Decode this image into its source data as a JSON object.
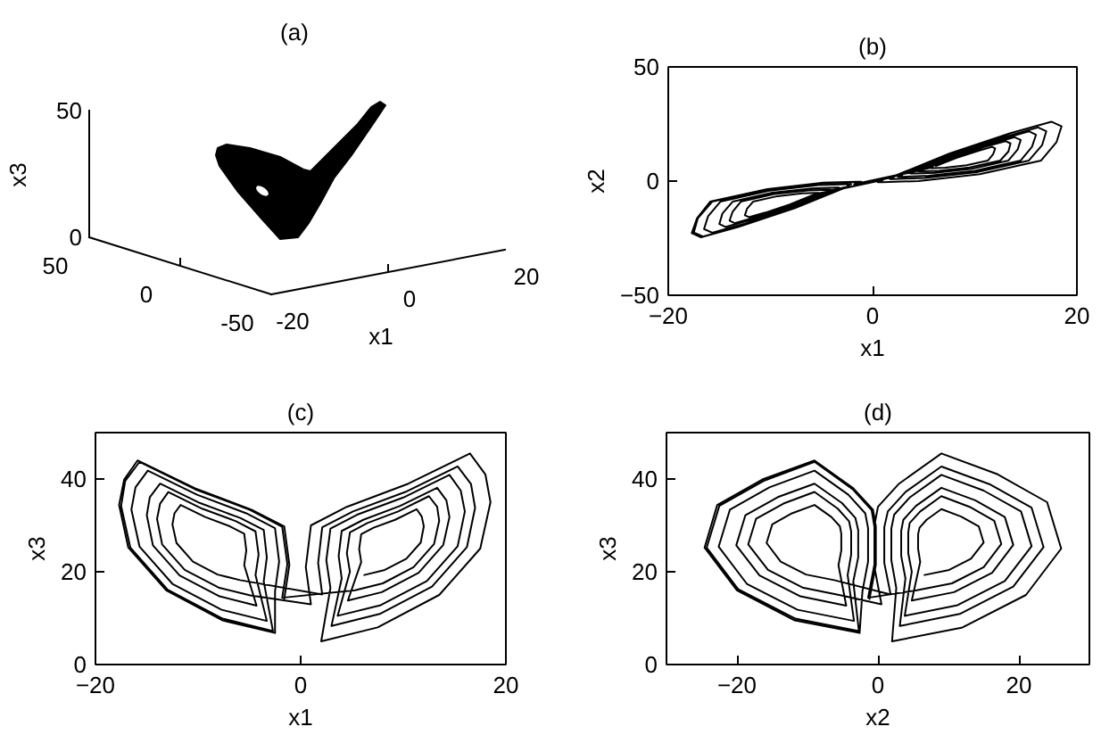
{
  "chart_data": [
    {
      "type": "other",
      "title": "(a)",
      "xlabel": "x1",
      "ylabel": "x3",
      "annotations": [
        "50",
        "0",
        "50",
        "0",
        "-50",
        "-20",
        "0",
        "20"
      ]
    },
    {
      "type": "line",
      "title": "(b)",
      "xlabel": "x1",
      "ylabel": "x2",
      "xlim": [
        -20,
        20
      ],
      "ylim": [
        -50,
        50
      ],
      "xticks": [
        -20,
        0,
        20
      ],
      "yticks": [
        -50,
        0,
        50
      ],
      "color": "#000000",
      "x": [
        6.2,
        8.2,
        10.3,
        11.7,
        12.0,
        11.8,
        11.3,
        9.2,
        7.1,
        5.9,
        5.7,
        5.9,
        4.6,
        7.9,
        11.5,
        13.9,
        14.5,
        14.2,
        13.3,
        9.7,
        6.1,
        4.0,
        3.7,
        4.0,
        3.0,
        7.7,
        12.8,
        16.2,
        17.0,
        16.6,
        15.3,
        10.2,
        5.1,
        2.1,
        1.7,
        2.1,
        -5.9,
        -8.1,
        -10.5,
        -12.1,
        -12.5,
        -12.3,
        -11.7,
        -9.3,
        -6.9,
        -5.5,
        -5.3,
        -5.5,
        -4.3,
        -7.9,
        -11.8,
        -14.4,
        -15.0,
        -14.7,
        -13.7,
        -9.8,
        -5.9,
        -3.6,
        -3.3,
        -3.6,
        -2.7,
        -7.6,
        -13.0,
        -16.6,
        -17.5,
        -17.1,
        -15.7,
        -10.3,
        -4.9,
        -1.8,
        -1.3,
        -1.8,
        5.3,
        8.0,
        11.0,
        13.0,
        13.5,
        13.3,
        12.5,
        9.5,
        6.5,
        4.8,
        4.5,
        4.8,
        3.6,
        7.8,
        12.3,
        15.3,
        16.0,
        15.6,
        14.5,
        10.0,
        5.5,
        2.9,
        2.5,
        2.9,
        2.0,
        7.5,
        13.5,
        17.5,
        18.5,
        18.0,
        16.5,
        10.5,
        4.5,
        1.0,
        0.5,
        1.0,
        -4.9,
        -8.0,
        -11.3,
        -13.5,
        -14.0,
        -13.7,
        -12.9,
        -9.6,
        -6.3,
        -4.4,
        -4.1,
        -4.4,
        -3.3,
        -7.7,
        -12.5,
        -15.7,
        -16.5,
        -16.1,
        -14.9,
        -10.1,
        -5.3,
        -2.5,
        -2.1,
        -2.5,
        -2.5,
        -7.6,
        -13.1,
        -16.8,
        -17.7,
        -17.2,
        -15.9,
        -10.3,
        -4.8,
        -1.6,
        -1.1,
        -1.6
      ],
      "values": [
        6.6,
        10.1,
        13.2,
        15.0,
        14.3,
        11.8,
        9.0,
        6.9,
        5.9,
        5.7,
        5.7,
        6.0,
        4.8,
        10.8,
        16.2,
        19.2,
        18.0,
        13.8,
        9.0,
        5.4,
        3.6,
        3.3,
        3.3,
        3.9,
        3.1,
        11.6,
        19.2,
        23.5,
        21.8,
        15.8,
        9.0,
        3.9,
        1.4,
        0.9,
        0.9,
        1.8,
        -6.2,
        -10.2,
        -13.8,
        -15.8,
        -15.0,
        -12.2,
        -9.0,
        -6.6,
        -5.4,
        -5.2,
        -5.2,
        -5.6,
        -4.5,
        -11.0,
        -16.8,
        -20.1,
        -18.8,
        -14.2,
        -9.0,
        -5.1,
        -3.2,
        -2.8,
        -2.8,
        -3.5,
        -2.7,
        -11.7,
        -19.8,
        -24.3,
        -22.5,
        -16.2,
        -9.0,
        -3.6,
        -0.9,
        -0.5,
        -0.5,
        -1.4,
        5.5,
        10.5,
        15.0,
        17.5,
        16.5,
        13.0,
        9.0,
        6.0,
        4.5,
        4.3,
        4.3,
        4.8,
        3.8,
        11.3,
        18.0,
        21.8,
        20.3,
        15.0,
        9.0,
        4.5,
        2.3,
        1.9,
        1.9,
        2.6,
        2.0,
        12.0,
        21.0,
        26.0,
        24.0,
        17.0,
        9.0,
        3.0,
        0.0,
        -0.5,
        -0.5,
        0.5,
        -5.2,
        -10.7,
        -15.6,
        -18.4,
        -17.3,
        -13.4,
        -9.0,
        -5.7,
        -4.1,
        -3.8,
        -3.8,
        -4.3,
        -3.4,
        -11.4,
        -18.6,
        -22.6,
        -21.0,
        -15.4,
        -9.0,
        -4.2,
        -1.8,
        -1.4,
        -1.4,
        -2.2,
        -2.6,
        -11.8,
        -20.0,
        -24.6,
        -22.8,
        -16.4,
        -9.0,
        -3.5,
        -0.7,
        -0.3,
        -0.3,
        -1.2
      ]
    },
    {
      "type": "line",
      "title": "(c)",
      "xlabel": "x1",
      "ylabel": "x3",
      "xlim": [
        -20,
        20
      ],
      "ylim": [
        0,
        50
      ],
      "xticks": [
        -20,
        0,
        20
      ],
      "yticks": [
        0,
        20,
        40
      ],
      "color": "#000000",
      "x": [
        6.2,
        8.2,
        10.3,
        11.7,
        12.0,
        11.8,
        11.3,
        9.2,
        7.1,
        5.9,
        5.7,
        5.9,
        4.6,
        7.9,
        11.5,
        13.9,
        14.5,
        14.2,
        13.3,
        9.7,
        6.1,
        4.0,
        3.7,
        4.0,
        3.0,
        7.7,
        12.8,
        16.2,
        17.0,
        16.6,
        15.3,
        10.2,
        5.1,
        2.1,
        1.7,
        2.1,
        -5.9,
        -8.1,
        -10.5,
        -12.1,
        -12.5,
        -12.3,
        -11.7,
        -9.3,
        -6.9,
        -5.5,
        -5.3,
        -5.5,
        -4.3,
        -7.9,
        -11.8,
        -14.4,
        -15.0,
        -14.7,
        -13.7,
        -9.8,
        -5.9,
        -3.6,
        -3.3,
        -3.6,
        -2.7,
        -7.6,
        -13.0,
        -16.6,
        -17.5,
        -17.1,
        -15.7,
        -10.3,
        -4.9,
        -1.8,
        -1.3,
        -1.8,
        5.3,
        8.0,
        11.0,
        13.0,
        13.5,
        13.3,
        12.5,
        9.5,
        6.5,
        4.8,
        4.5,
        4.8,
        3.6,
        7.8,
        12.3,
        15.3,
        16.0,
        15.6,
        14.5,
        10.0,
        5.5,
        2.9,
        2.5,
        2.9,
        2.0,
        7.5,
        13.5,
        17.5,
        18.5,
        18.0,
        16.5,
        10.5,
        4.5,
        1.0,
        0.5,
        1.0,
        -4.9,
        -8.0,
        -11.3,
        -13.5,
        -14.0,
        -13.7,
        -12.9,
        -9.6,
        -6.3,
        -4.4,
        -4.1,
        -4.4,
        -3.3,
        -7.7,
        -12.5,
        -15.7,
        -16.5,
        -16.1,
        -14.9,
        -10.1,
        -5.3,
        -2.5,
        -2.1,
        -2.5,
        -2.5,
        -7.6,
        -13.1,
        -16.8,
        -17.7,
        -17.2,
        -15.9,
        -10.3,
        -4.8,
        -1.6,
        -1.1,
        -1.6
      ],
      "values": [
        19.3,
        20.4,
        22.8,
        26.3,
        29.8,
        31.9,
        33.5,
        31.2,
        29.5,
        28.1,
        24.9,
        22.1,
        13.8,
        15.6,
        19.8,
        25.8,
        31.8,
        35.4,
        38.1,
        34.2,
        31.2,
        28.8,
        23.4,
        18.6,
        8.3,
        10.9,
        16.8,
        25.3,
        33.8,
        38.9,
        42.7,
        37.2,
        33.0,
        29.6,
        21.9,
        15.1,
        18.2,
        19.4,
        22.2,
        26.2,
        30.2,
        32.6,
        34.4,
        31.8,
        29.8,
        28.2,
        24.6,
        21.4,
        12.7,
        14.7,
        19.2,
        25.7,
        32.2,
        36.1,
        39.0,
        34.8,
        31.6,
        29.0,
        23.1,
        17.9,
        7.2,
        9.9,
        16.2,
        25.2,
        34.2,
        39.6,
        43.7,
        37.8,
        33.3,
        29.7,
        21.6,
        14.4,
        16.0,
        17.5,
        21.0,
        26.0,
        31.0,
        34.0,
        36.3,
        33.0,
        30.5,
        28.5,
        24.0,
        20.0,
        10.5,
        12.8,
        18.0,
        25.5,
        33.0,
        37.5,
        40.9,
        36.0,
        32.3,
        29.3,
        22.5,
        16.5,
        5.0,
        8.0,
        15.0,
        25.0,
        35.0,
        41.0,
        45.5,
        39.0,
        34.0,
        30.0,
        21.0,
        13.0,
        14.9,
        16.6,
        20.4,
        25.9,
        31.4,
        34.7,
        37.2,
        33.6,
        30.9,
        28.7,
        23.7,
        19.3,
        9.4,
        11.8,
        17.4,
        25.4,
        33.4,
        38.2,
        41.8,
        36.6,
        32.6,
        29.4,
        22.2,
        15.8,
        6.8,
        9.5,
        16.0,
        25.2,
        34.4,
        39.9,
        44.0,
        38.0,
        33.4,
        29.8,
        21.5,
        14.1
      ]
    },
    {
      "type": "line",
      "title": "(d)",
      "xlabel": "x2",
      "ylabel": "x3",
      "xlim": [
        -30,
        30
      ],
      "ylim": [
        0,
        50
      ],
      "xticks": [
        -20,
        0,
        20
      ],
      "yticks": [
        0,
        20,
        40
      ],
      "color": "#000000",
      "x": [
        6.6,
        10.1,
        13.2,
        15.0,
        14.3,
        11.8,
        9.0,
        6.9,
        5.9,
        5.7,
        5.7,
        6.0,
        4.8,
        10.8,
        16.2,
        19.2,
        18.0,
        13.8,
        9.0,
        5.4,
        3.6,
        3.3,
        3.3,
        3.9,
        3.1,
        11.6,
        19.2,
        23.5,
        21.8,
        15.8,
        9.0,
        3.9,
        1.4,
        0.9,
        0.9,
        1.8,
        -6.2,
        -10.2,
        -13.8,
        -15.8,
        -15.0,
        -12.2,
        -9.0,
        -6.6,
        -5.4,
        -5.2,
        -5.2,
        -5.6,
        -4.5,
        -11.0,
        -16.8,
        -20.1,
        -18.8,
        -14.2,
        -9.0,
        -5.1,
        -3.2,
        -2.8,
        -2.8,
        -3.5,
        -2.7,
        -11.7,
        -19.8,
        -24.3,
        -22.5,
        -16.2,
        -9.0,
        -3.6,
        -0.9,
        -0.5,
        -0.5,
        -1.4,
        5.5,
        10.5,
        15.0,
        17.5,
        16.5,
        13.0,
        9.0,
        6.0,
        4.5,
        4.3,
        4.3,
        4.8,
        3.8,
        11.3,
        18.0,
        21.8,
        20.3,
        15.0,
        9.0,
        4.5,
        2.3,
        1.9,
        1.9,
        2.6,
        2.0,
        12.0,
        21.0,
        26.0,
        24.0,
        17.0,
        9.0,
        3.0,
        0.0,
        -0.5,
        -0.5,
        0.5,
        -5.2,
        -10.7,
        -15.6,
        -18.4,
        -17.3,
        -13.4,
        -9.0,
        -5.7,
        -4.1,
        -3.8,
        -3.8,
        -4.3,
        -3.4,
        -11.4,
        -18.6,
        -22.6,
        -21.0,
        -15.4,
        -9.0,
        -4.2,
        -1.8,
        -1.4,
        -1.4,
        -2.2,
        -2.6,
        -11.8,
        -20.0,
        -24.6,
        -22.8,
        -16.4,
        -9.0,
        -3.5,
        -0.7,
        -0.3,
        -0.3,
        -1.2
      ],
      "values": [
        19.3,
        20.4,
        22.8,
        26.3,
        29.8,
        31.9,
        33.5,
        31.2,
        29.5,
        28.1,
        24.9,
        22.1,
        13.8,
        15.6,
        19.8,
        25.8,
        31.8,
        35.4,
        38.1,
        34.2,
        31.2,
        28.8,
        23.4,
        18.6,
        8.3,
        10.9,
        16.8,
        25.3,
        33.8,
        38.9,
        42.7,
        37.2,
        33.0,
        29.6,
        21.9,
        15.1,
        18.2,
        19.4,
        22.2,
        26.2,
        30.2,
        32.6,
        34.4,
        31.8,
        29.8,
        28.2,
        24.6,
        21.4,
        12.7,
        14.7,
        19.2,
        25.7,
        32.2,
        36.1,
        39.0,
        34.8,
        31.6,
        29.0,
        23.1,
        17.9,
        7.2,
        9.9,
        16.2,
        25.2,
        34.2,
        39.6,
        43.7,
        37.8,
        33.3,
        29.7,
        21.6,
        14.4,
        16.0,
        17.5,
        21.0,
        26.0,
        31.0,
        34.0,
        36.3,
        33.0,
        30.5,
        28.5,
        24.0,
        20.0,
        10.5,
        12.8,
        18.0,
        25.5,
        33.0,
        37.5,
        40.9,
        36.0,
        32.3,
        29.3,
        22.5,
        16.5,
        5.0,
        8.0,
        15.0,
        25.0,
        35.0,
        41.0,
        45.5,
        39.0,
        34.0,
        30.0,
        21.0,
        13.0,
        14.9,
        16.6,
        20.4,
        25.9,
        31.4,
        34.7,
        37.2,
        33.6,
        30.9,
        28.7,
        23.7,
        19.3,
        9.4,
        11.8,
        17.4,
        25.4,
        33.4,
        38.2,
        41.8,
        36.6,
        32.6,
        29.4,
        22.2,
        15.8,
        6.8,
        9.5,
        16.0,
        25.2,
        34.4,
        39.9,
        44.0,
        38.0,
        33.4,
        29.8,
        21.5,
        14.1
      ]
    }
  ]
}
